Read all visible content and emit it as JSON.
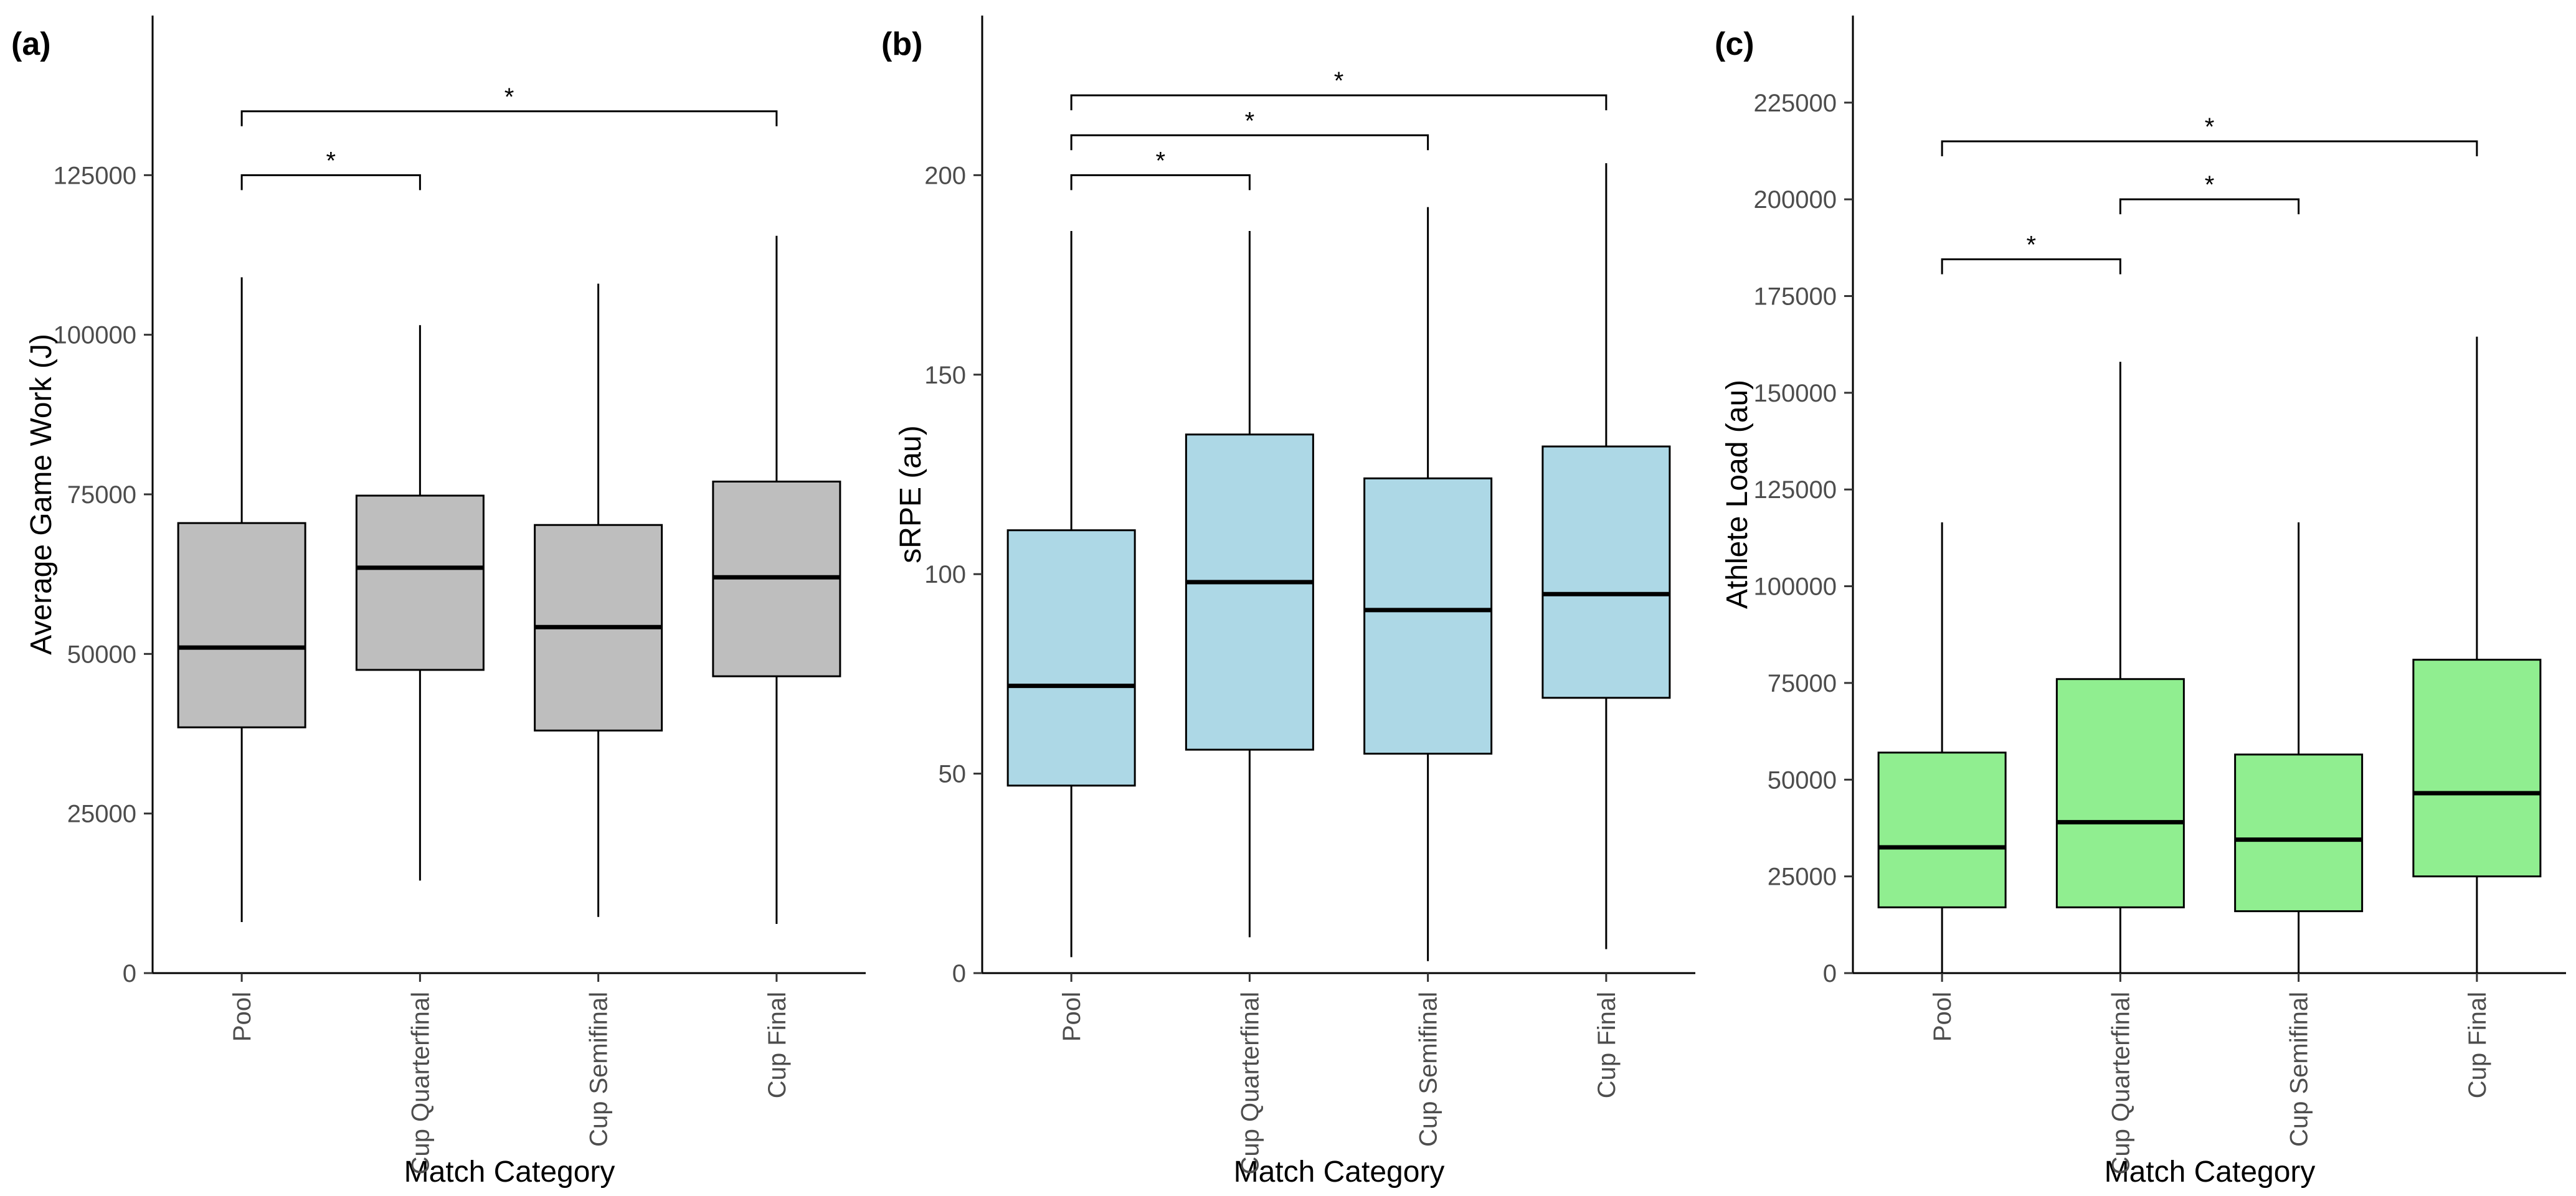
{
  "chart_data": [
    {
      "type": "box",
      "panel_label": "(a)",
      "xlabel": "Match Category",
      "ylabel": "Average Game Work (J)",
      "categories": [
        "Pool",
        "Cup Quarterfinal",
        "Cup Semifinal",
        "Cup Final"
      ],
      "ylim": [
        0,
        150000
      ],
      "yticks": [
        0,
        25000,
        50000,
        75000,
        100000,
        125000
      ],
      "ytick_labels": [
        "0",
        "25000",
        "50000",
        "75000",
        "100000",
        "125000"
      ],
      "fill_color": "#bebebe",
      "boxes": [
        {
          "category": "Pool",
          "whisker_low": 8000,
          "q1": 38500,
          "median": 51000,
          "q3": 70500,
          "whisker_high": 109000
        },
        {
          "category": "Cup Quarterfinal",
          "whisker_low": 14500,
          "q1": 47500,
          "median": 63500,
          "q3": 74800,
          "whisker_high": 101500
        },
        {
          "category": "Cup Semifinal",
          "whisker_low": 8800,
          "q1": 38000,
          "median": 54200,
          "q3": 70200,
          "whisker_high": 108000
        },
        {
          "category": "Cup Final",
          "whisker_low": 7700,
          "q1": 46500,
          "median": 62000,
          "q3": 77000,
          "whisker_high": 115500
        }
      ],
      "significance": [
        {
          "from": 0,
          "to": 1,
          "y": 125000,
          "label": "*"
        },
        {
          "from": 0,
          "to": 3,
          "y": 135000,
          "label": "*"
        }
      ]
    },
    {
      "type": "box",
      "panel_label": "(b)",
      "xlabel": "Match Category",
      "ylabel": "sRPE (au)",
      "categories": [
        "Pool",
        "Cup Quarterfinal",
        "Cup Semifinal",
        "Cup Final"
      ],
      "ylim": [
        0,
        240
      ],
      "yticks": [
        0,
        50,
        100,
        150,
        200
      ],
      "ytick_labels": [
        "0",
        "50",
        "100",
        "150",
        "200"
      ],
      "fill_color": "#add8e6",
      "boxes": [
        {
          "category": "Pool",
          "whisker_low": 4,
          "q1": 47,
          "median": 72,
          "q3": 111,
          "whisker_high": 186
        },
        {
          "category": "Cup Quarterfinal",
          "whisker_low": 9,
          "q1": 56,
          "median": 98,
          "q3": 135,
          "whisker_high": 186
        },
        {
          "category": "Cup Semifinal",
          "whisker_low": 3,
          "q1": 55,
          "median": 91,
          "q3": 124,
          "whisker_high": 192
        },
        {
          "category": "Cup Final",
          "whisker_low": 6,
          "q1": 69,
          "median": 95,
          "q3": 132,
          "whisker_high": 203
        }
      ],
      "significance": [
        {
          "from": 0,
          "to": 1,
          "y": 200,
          "label": "*"
        },
        {
          "from": 0,
          "to": 2,
          "y": 210,
          "label": "*"
        },
        {
          "from": 0,
          "to": 3,
          "y": 220,
          "label": "*"
        }
      ]
    },
    {
      "type": "box",
      "panel_label": "(c)",
      "xlabel": "Match Category",
      "ylabel": "Athlete Load (au)",
      "categories": [
        "Pool",
        "Cup Quarterfinal",
        "Cup Semifinal",
        "Cup Final"
      ],
      "ylim": [
        0,
        247500
      ],
      "yticks": [
        0,
        25000,
        50000,
        75000,
        100000,
        125000,
        150000,
        175000,
        200000,
        225000
      ],
      "ytick_labels": [
        "0",
        "25000",
        "50000",
        "75000",
        "100000",
        "125000",
        "150000",
        "175000",
        "200000",
        "225000"
      ],
      "fill_color": "#90ee90",
      "boxes": [
        {
          "category": "Pool",
          "whisker_low": 0,
          "q1": 17000,
          "median": 32500,
          "q3": 57000,
          "whisker_high": 116500
        },
        {
          "category": "Cup Quarterfinal",
          "whisker_low": 0,
          "q1": 17000,
          "median": 39000,
          "q3": 76000,
          "whisker_high": 158000
        },
        {
          "category": "Cup Semifinal",
          "whisker_low": 0,
          "q1": 16000,
          "median": 34500,
          "q3": 56500,
          "whisker_high": 116500
        },
        {
          "category": "Cup Final",
          "whisker_low": 0,
          "q1": 25000,
          "median": 46500,
          "q3": 81000,
          "whisker_high": 164500
        }
      ],
      "significance": [
        {
          "from": 0,
          "to": 1,
          "y": 184500,
          "label": "*"
        },
        {
          "from": 1,
          "to": 2,
          "y": 200000,
          "label": "*"
        },
        {
          "from": 0,
          "to": 3,
          "y": 215000,
          "label": "*"
        }
      ]
    }
  ]
}
